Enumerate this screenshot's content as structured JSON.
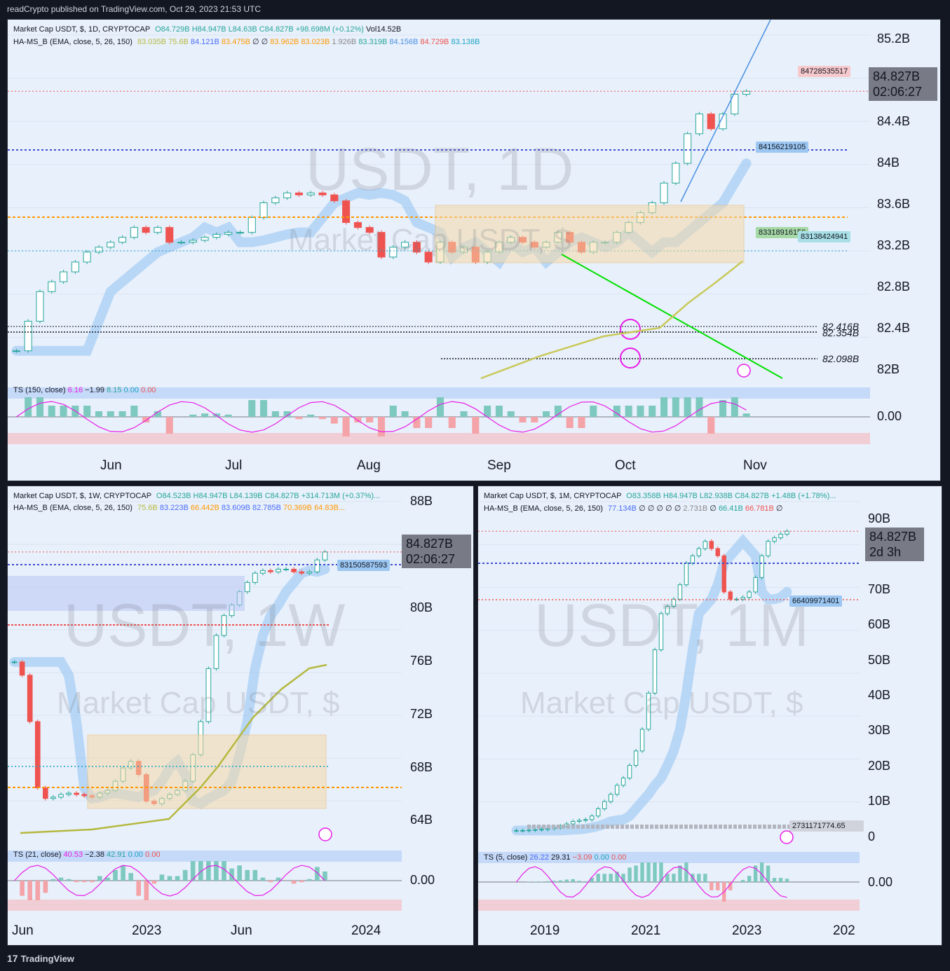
{
  "header": {
    "published": "readCrypto published on TradingView.com, Oct 29, 2023 21:53 UTC"
  },
  "footer": {
    "brand": "TradingView",
    "logo": "tv-logo-icon"
  },
  "colors": {
    "bg": "#131722",
    "panel": "#e8f0fb",
    "up": "#26a69a",
    "down": "#ef5350",
    "blue": "#4a6cf7",
    "orange": "#ff9800",
    "olive": "#b5b83e",
    "green": "#00e000",
    "magenta": "#e91ee8"
  },
  "panels": [
    {
      "id": "daily",
      "legend1": {
        "title": "Market Cap USDT, $, 1D, CRYPTOCAP",
        "o": "O84.729B",
        "h": "H84.947B",
        "l": "L84.63B",
        "c": "C84.827B",
        "chg": "+98.698M (+0.12%)",
        "vol": "Vol14.52B"
      },
      "legend2": {
        "name": "HA-MS_B (EMA, close, 5, 26, 150)",
        "values": [
          "83.035B",
          "75.6B",
          "84.121B",
          "83.475B",
          "∅",
          "∅",
          "83.962B",
          "83.023B",
          "1.926B",
          "83.319B",
          "84.156B",
          "84.729B",
          "83.138B"
        ]
      },
      "watermark": {
        "big": "USDT, 1D",
        "small": "Market Cap USDT, $"
      },
      "price": {
        "value": "84.827B",
        "countdown": "02:06:27"
      },
      "tags": [
        "84728535517",
        "84156219105",
        "83318916156",
        "83138424941"
      ],
      "levels": [
        "82.416B",
        "82.354B",
        "82.098B"
      ],
      "osc_legend": {
        "name": "TS (150, close)",
        "values": [
          "6.16",
          "−1.99",
          "8.15",
          "0.00",
          "0.00"
        ],
        "zero": "0.00"
      }
    },
    {
      "id": "weekly",
      "legend1": {
        "title": "Market Cap USDT, $, 1W, CRYPTOCAP",
        "o": "O84.523B",
        "h": "H84.947B",
        "l": "L84.139B",
        "c": "C84.827B",
        "chg": "+314.713M (+0.37%)..."
      },
      "legend2": {
        "name": "HA-MS_B (EMA, close, 5, 26, 150)",
        "values": [
          "75.6B",
          "83.223B",
          "66.442B",
          "83.609B",
          "82.785B",
          "70.369B",
          "64.83B..."
        ]
      },
      "watermark": {
        "big": "USDT, 1W",
        "small": "Market Cap USDT, $"
      },
      "price": {
        "value": "84.827B",
        "countdown": "02:06:27"
      },
      "tags": [
        "83150587593"
      ],
      "osc_legend": {
        "name": "TS (21, close)",
        "values": [
          "40.53",
          "−2.38",
          "42.91",
          "0.00",
          "0.00"
        ],
        "zero": "0.00"
      }
    },
    {
      "id": "monthly",
      "legend1": {
        "title": "Market Cap USDT, $, 1M, CRYPTOCAP",
        "o": "O83.358B",
        "h": "H84.947B",
        "l": "L82.938B",
        "c": "C84.827B",
        "chg": "+1.48B (+1.78%)..."
      },
      "legend2": {
        "name": "HA-MS_B (EMA, close, 5, 26, 150)",
        "values": [
          "77.134B",
          "∅",
          "∅",
          "∅",
          "∅",
          "∅",
          "2.731B",
          "∅",
          "66.41B",
          "66.781B",
          "∅"
        ]
      },
      "watermark": {
        "big": "USDT, 1M",
        "small": "Market Cap USDT, $"
      },
      "price": {
        "value": "84.827B",
        "countdown": "2d 3h"
      },
      "tags": [
        "66409971401",
        "2731171774.65"
      ],
      "osc_legend": {
        "name": "TS (5, close)",
        "values": [
          "26.22",
          "29.31",
          "−3.09",
          "0.00",
          "0.00"
        ],
        "zero": "0.00"
      }
    }
  ],
  "chart_data": [
    {
      "type": "candlestick",
      "timeframe": "1D",
      "x_ticks": [
        "Jun",
        "Jul",
        "Aug",
        "Sep",
        "Oct",
        "Nov"
      ],
      "y_ticks": [
        "85.2B",
        "84.4B",
        "84B",
        "83.6B",
        "83.2B",
        "82.8B",
        "82.4B",
        "82B"
      ],
      "ylim": [
        81.9,
        85.4
      ],
      "series": [
        {
          "values": [
            82.2,
            82.5,
            82.8,
            82.9,
            83.0,
            83.1,
            83.2,
            83.25,
            83.3,
            83.35,
            83.45,
            83.4,
            83.45,
            83.3,
            83.3,
            83.32,
            83.35,
            83.38,
            83.4,
            83.4,
            83.55,
            83.7,
            83.75,
            83.8,
            83.78,
            83.8,
            83.78,
            83.72,
            83.5,
            83.45,
            83.4,
            83.15,
            83.25,
            83.3,
            83.2,
            83.1,
            83.3,
            83.2,
            83.25,
            83.1,
            83.2,
            83.3,
            83.35,
            83.3,
            83.25,
            83.3,
            83.4,
            83.3,
            83.2,
            83.3,
            83.3,
            83.4,
            83.5,
            83.6,
            83.7,
            83.9,
            84.1,
            84.4,
            84.6,
            84.45,
            84.6,
            84.8,
            84.83
          ]
        }
      ]
    },
    {
      "type": "candlestick",
      "timeframe": "1W",
      "x_ticks": [
        "Jun",
        "2023",
        "Jun",
        "2024"
      ],
      "y_ticks": [
        "88B",
        "84B",
        "80B",
        "76B",
        "72B",
        "68B",
        "64B"
      ],
      "ylim": [
        62.8,
        88.6
      ],
      "series": [
        {
          "values": [
            76.5,
            75.5,
            72,
            67,
            66.2,
            66.3,
            66.5,
            66.6,
            66.5,
            66.4,
            66.3,
            66.6,
            66.8,
            67.5,
            68.5,
            69,
            68,
            66,
            65.8,
            66.2,
            66.5,
            66.8,
            67.5,
            69.5,
            72,
            76,
            78.5,
            80,
            80.8,
            81.8,
            82.5,
            83.2,
            83.4,
            83.3,
            83.5,
            83.5,
            83.3,
            83.2,
            83.3,
            84.2,
            84.8
          ]
        }
      ]
    },
    {
      "type": "candlestick",
      "timeframe": "1M",
      "x_ticks": [
        "2019",
        "2021",
        "2023",
        "202"
      ],
      "y_ticks": [
        "90B",
        "80B",
        "70B",
        "60B",
        "50B",
        "40B",
        "30B",
        "20B",
        "10B",
        "0"
      ],
      "ylim": [
        -2,
        93
      ],
      "series": [
        {
          "values": [
            2,
            2,
            2.1,
            2.2,
            2.3,
            2.5,
            2.8,
            3.2,
            3.8,
            4.5,
            4.8,
            5,
            6,
            8,
            10,
            12,
            14.5,
            16.5,
            20,
            24,
            30,
            40,
            52,
            62,
            64,
            66,
            70,
            76,
            78,
            80,
            82,
            80,
            78,
            68,
            66,
            66,
            66.5,
            68,
            72,
            78,
            82,
            83,
            84,
            84.8
          ]
        }
      ]
    }
  ]
}
